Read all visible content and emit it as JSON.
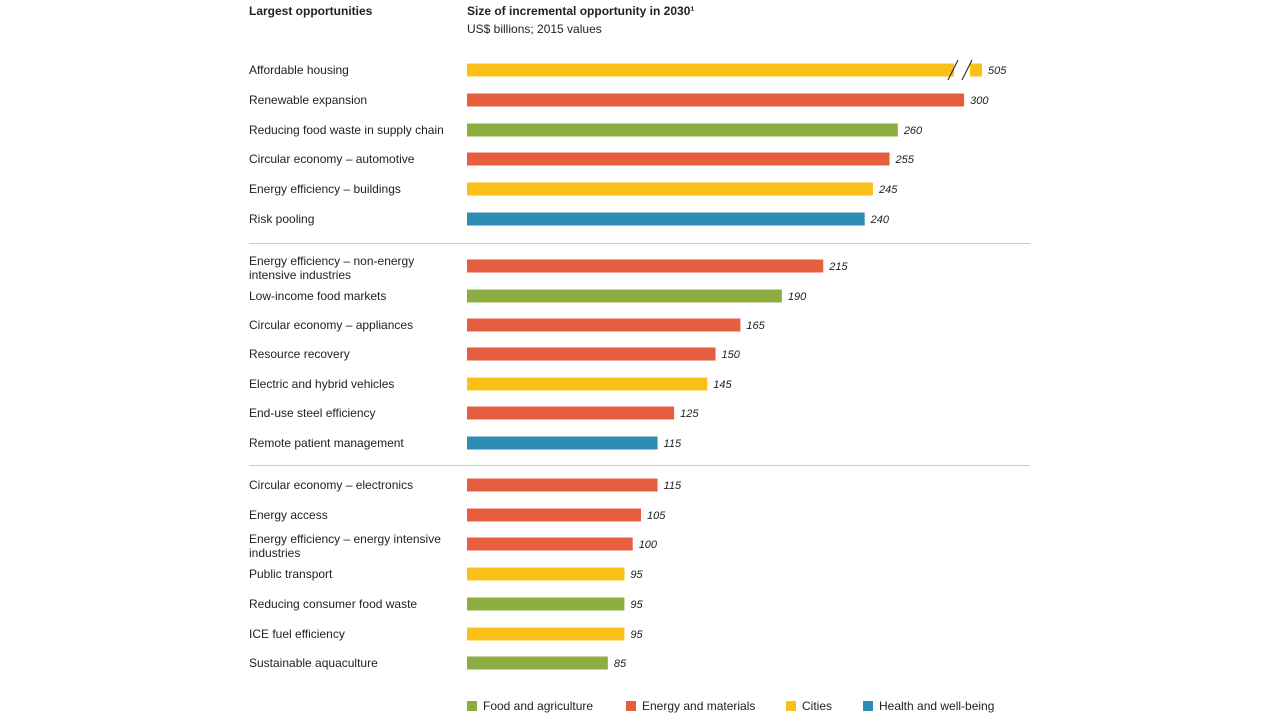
{
  "colors": {
    "food": "#8cad3f",
    "energy": "#e55f3f",
    "cities": "#f9c01a",
    "health": "#2c8cb4",
    "divider": "#cccccc",
    "text": "#222222"
  },
  "chart_data": {
    "type": "bar",
    "orientation": "horizontal",
    "column_header_left": "Largest opportunities",
    "title": "Size of incremental opportunity in 2030¹",
    "subtitle": "US$ billions; 2015 values",
    "categories": [
      "Affordable housing",
      "Renewable expansion",
      "Reducing food waste in supply chain",
      "Circular economy – automotive",
      "Energy efficiency – buildings",
      "Risk pooling",
      "Energy efficiency – non-energy intensive industries",
      "Low-income food markets",
      "Circular economy – appliances",
      "Resource recovery",
      "Electric and hybrid vehicles",
      "End-use steel efficiency",
      "Remote patient management",
      "Circular economy – electronics",
      "Energy access",
      "Energy efficiency – energy intensive industries",
      "Public transport",
      "Reducing consumer food waste",
      "ICE fuel efficiency",
      "Sustainable aquaculture"
    ],
    "values": [
      505,
      300,
      260,
      255,
      245,
      240,
      215,
      190,
      165,
      150,
      145,
      125,
      115,
      115,
      105,
      100,
      95,
      95,
      95,
      85
    ],
    "value_labels": [
      "505",
      "300",
      "260",
      "255",
      "245",
      "240",
      "215",
      "190",
      "165",
      "150",
      "145",
      "125",
      "115",
      "115",
      "105",
      "100",
      "95",
      "95",
      "95",
      "85"
    ],
    "sectors": [
      "cities",
      "energy",
      "food",
      "energy",
      "cities",
      "health",
      "energy",
      "food",
      "energy",
      "energy",
      "cities",
      "energy",
      "health",
      "energy",
      "energy",
      "energy",
      "cities",
      "food",
      "cities",
      "food"
    ],
    "groups": [
      [
        0,
        5
      ],
      [
        6,
        12
      ],
      [
        13,
        19
      ]
    ],
    "broken_axis_bar_index": 0,
    "legend": [
      {
        "key": "food",
        "label": "Food and agriculture"
      },
      {
        "key": "energy",
        "label": "Energy and materials"
      },
      {
        "key": "cities",
        "label": "Cities"
      },
      {
        "key": "health",
        "label": "Health and well-being"
      }
    ],
    "legend_position": "bottom",
    "grid": false
  }
}
